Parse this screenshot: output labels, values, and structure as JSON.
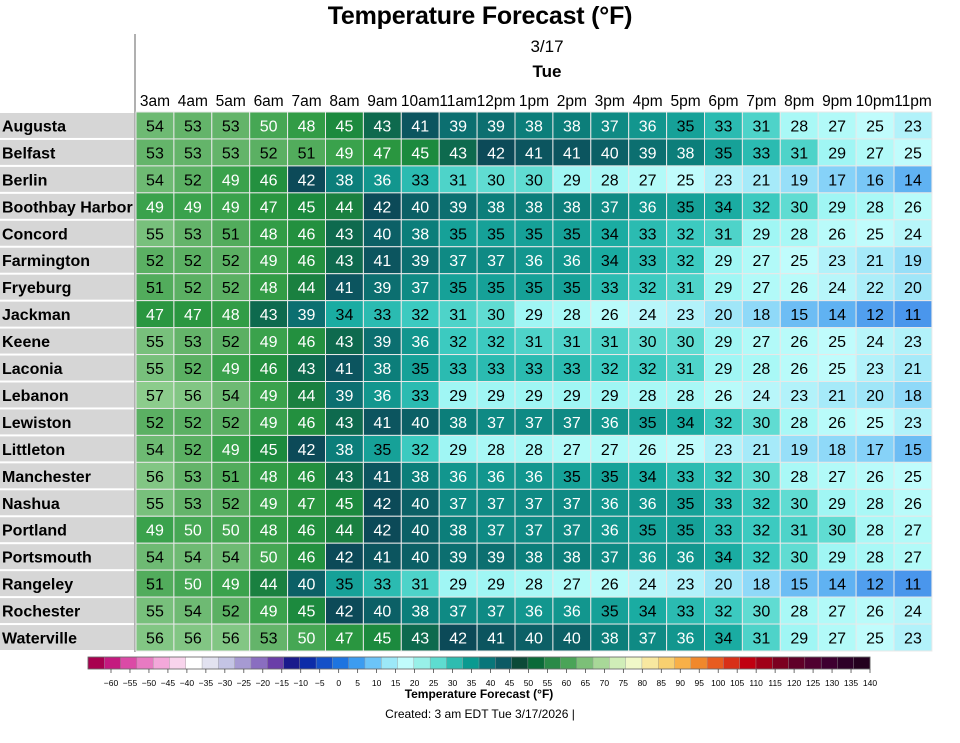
{
  "chart_data": {
    "type": "heatmap",
    "title": "Temperature Forecast (°F)",
    "date": "3/17",
    "day": "Tue",
    "hours": [
      "3am",
      "4am",
      "5am",
      "6am",
      "7am",
      "8am",
      "9am",
      "10am",
      "11am",
      "12pm",
      "1pm",
      "2pm",
      "3pm",
      "4pm",
      "5pm",
      "6pm",
      "7pm",
      "8pm",
      "9pm",
      "10pm",
      "11pm"
    ],
    "rows": [
      {
        "name": "Augusta",
        "values": [
          54,
          53,
          53,
          50,
          48,
          45,
          43,
          41,
          39,
          39,
          38,
          38,
          37,
          36,
          35,
          33,
          31,
          28,
          27,
          25,
          23
        ]
      },
      {
        "name": "Belfast",
        "values": [
          53,
          53,
          53,
          52,
          51,
          49,
          47,
          45,
          43,
          42,
          41,
          41,
          40,
          39,
          38,
          35,
          33,
          31,
          29,
          27,
          25
        ]
      },
      {
        "name": "Berlin",
        "values": [
          54,
          52,
          49,
          46,
          42,
          38,
          36,
          33,
          31,
          30,
          30,
          29,
          28,
          27,
          25,
          23,
          21,
          19,
          17,
          16,
          14
        ]
      },
      {
        "name": "Boothbay Harbor",
        "values": [
          49,
          49,
          49,
          47,
          45,
          44,
          42,
          40,
          39,
          38,
          38,
          38,
          37,
          36,
          35,
          34,
          32,
          30,
          29,
          28,
          26
        ]
      },
      {
        "name": "Concord",
        "values": [
          55,
          53,
          51,
          48,
          46,
          43,
          40,
          38,
          35,
          35,
          35,
          35,
          34,
          33,
          32,
          31,
          29,
          28,
          26,
          25,
          24
        ]
      },
      {
        "name": "Farmington",
        "values": [
          52,
          52,
          52,
          49,
          46,
          43,
          41,
          39,
          37,
          37,
          36,
          36,
          34,
          33,
          32,
          29,
          27,
          25,
          23,
          21,
          19
        ]
      },
      {
        "name": "Fryeburg",
        "values": [
          51,
          52,
          52,
          48,
          44,
          41,
          39,
          37,
          35,
          35,
          35,
          35,
          33,
          32,
          31,
          29,
          27,
          26,
          24,
          22,
          20
        ]
      },
      {
        "name": "Jackman",
        "values": [
          47,
          47,
          48,
          43,
          39,
          34,
          33,
          32,
          31,
          30,
          29,
          28,
          26,
          24,
          23,
          20,
          18,
          15,
          14,
          12,
          11
        ]
      },
      {
        "name": "Keene",
        "values": [
          55,
          53,
          52,
          49,
          46,
          43,
          39,
          36,
          32,
          32,
          31,
          31,
          31,
          30,
          30,
          29,
          27,
          26,
          25,
          24,
          23
        ]
      },
      {
        "name": "Laconia",
        "values": [
          55,
          52,
          49,
          46,
          43,
          41,
          38,
          35,
          33,
          33,
          33,
          33,
          32,
          32,
          31,
          29,
          28,
          26,
          25,
          23,
          21
        ]
      },
      {
        "name": "Lebanon",
        "values": [
          57,
          56,
          54,
          49,
          44,
          39,
          36,
          33,
          29,
          29,
          29,
          29,
          29,
          28,
          28,
          26,
          24,
          23,
          21,
          20,
          18
        ]
      },
      {
        "name": "Lewiston",
        "values": [
          52,
          52,
          52,
          49,
          46,
          43,
          41,
          40,
          38,
          37,
          37,
          37,
          36,
          35,
          34,
          32,
          30,
          28,
          26,
          25,
          23
        ]
      },
      {
        "name": "Littleton",
        "values": [
          54,
          52,
          49,
          45,
          42,
          38,
          35,
          32,
          29,
          28,
          28,
          27,
          27,
          26,
          25,
          23,
          21,
          19,
          18,
          17,
          15
        ]
      },
      {
        "name": "Manchester",
        "values": [
          56,
          53,
          51,
          48,
          46,
          43,
          41,
          38,
          36,
          36,
          36,
          35,
          35,
          34,
          33,
          32,
          30,
          28,
          27,
          26,
          25
        ]
      },
      {
        "name": "Nashua",
        "values": [
          55,
          53,
          52,
          49,
          47,
          45,
          42,
          40,
          37,
          37,
          37,
          37,
          36,
          36,
          35,
          33,
          32,
          30,
          29,
          28,
          26
        ]
      },
      {
        "name": "Portland",
        "values": [
          49,
          50,
          50,
          48,
          46,
          44,
          42,
          40,
          38,
          37,
          37,
          37,
          36,
          35,
          35,
          33,
          32,
          31,
          30,
          28,
          27
        ]
      },
      {
        "name": "Portsmouth",
        "values": [
          54,
          54,
          54,
          50,
          46,
          42,
          41,
          40,
          39,
          39,
          38,
          38,
          37,
          36,
          36,
          34,
          32,
          30,
          29,
          28,
          27
        ]
      },
      {
        "name": "Rangeley",
        "values": [
          51,
          50,
          49,
          44,
          40,
          35,
          33,
          31,
          29,
          29,
          28,
          27,
          26,
          24,
          23,
          20,
          18,
          15,
          14,
          12,
          11
        ]
      },
      {
        "name": "Rochester",
        "values": [
          55,
          54,
          52,
          49,
          45,
          42,
          40,
          38,
          37,
          37,
          36,
          36,
          35,
          34,
          33,
          32,
          30,
          28,
          27,
          26,
          24
        ]
      },
      {
        "name": "Waterville",
        "values": [
          56,
          56,
          56,
          53,
          50,
          47,
          45,
          43,
          42,
          41,
          40,
          40,
          38,
          37,
          36,
          34,
          31,
          29,
          27,
          25,
          23
        ]
      }
    ],
    "colorbar": {
      "title": "Temperature Forecast (°F)",
      "ticks": [
        -60,
        -55,
        -50,
        -45,
        -40,
        -35,
        -30,
        -25,
        -20,
        -15,
        -10,
        -5,
        0,
        5,
        10,
        15,
        20,
        25,
        30,
        35,
        40,
        45,
        50,
        55,
        60,
        65,
        70,
        75,
        80,
        85,
        90,
        95,
        100,
        105,
        110,
        115,
        120,
        125,
        130,
        135,
        140
      ],
      "colors": [
        "#a8004f",
        "#c41a7f",
        "#db4aa6",
        "#e87ac2",
        "#f3a8da",
        "#f8d4ec",
        "#ffffff",
        "#e2e2f0",
        "#c4c4e4",
        "#a69ad2",
        "#8a6ec0",
        "#6a3ea8",
        "#1a1a8c",
        "#0c2ca8",
        "#1450c8",
        "#1e74e0",
        "#3c9cf0",
        "#6cc4f8",
        "#9ce8f8",
        "#c0fcfc",
        "#98f0e8",
        "#5edcd0",
        "#2ebcb0",
        "#0a9a90",
        "#08767a",
        "#0c5a64",
        "#0c4a38",
        "#0a6a38",
        "#2a8a48",
        "#4aa458",
        "#7cc078",
        "#a8d898",
        "#d0eeb8",
        "#f0f8c8",
        "#f8e8a0",
        "#f8d070",
        "#f8b048",
        "#f0882c",
        "#e85c20",
        "#d83018",
        "#c00010",
        "#a00018",
        "#7c0020",
        "#600028",
        "#500030",
        "#3e0030",
        "#2e0028",
        "#24001e"
      ]
    },
    "created": "Created: 3 am EDT Tue 3/17/2026  |"
  }
}
